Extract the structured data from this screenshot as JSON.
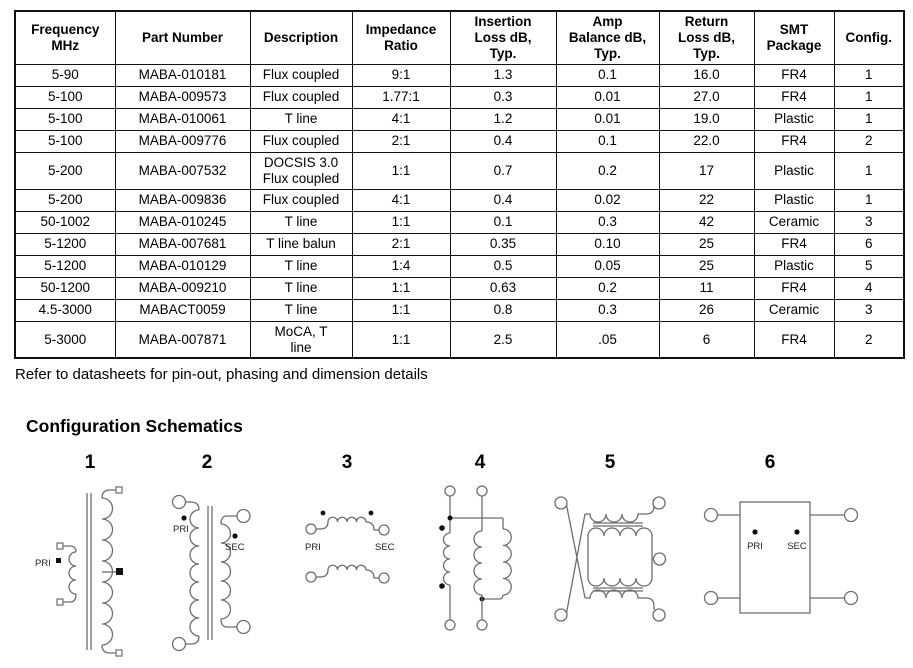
{
  "table": {
    "headers": [
      "Frequency\nMHz",
      "Part Number",
      "Description",
      "Impedance\nRatio",
      "Insertion\nLoss dB,\nTyp.",
      "Amp\nBalance dB,\nTyp.",
      "Return\nLoss dB,\nTyp.",
      "SMT\nPackage",
      "Config."
    ],
    "rows": [
      [
        "5-90",
        "MABA-010181",
        "Flux coupled",
        "9:1",
        "1.3",
        "0.1",
        "16.0",
        "FR4",
        "1"
      ],
      [
        "5-100",
        "MABA-009573",
        "Flux coupled",
        "1.77:1",
        "0.3",
        "0.01",
        "27.0",
        "FR4",
        "1"
      ],
      [
        "5-100",
        "MABA-010061",
        "T line",
        "4:1",
        "1.2",
        "0.01",
        "19.0",
        "Plastic",
        "1"
      ],
      [
        "5-100",
        "MABA-009776",
        "Flux coupled",
        "2:1",
        "0.4",
        "0.1",
        "22.0",
        "FR4",
        "2"
      ],
      [
        "5-200",
        "MABA-007532",
        "DOCSIS 3.0\nFlux coupled",
        "1:1",
        "0.7",
        "0.2",
        "17",
        "Plastic",
        "1"
      ],
      [
        "5-200",
        "MABA-009836",
        "Flux coupled",
        "4:1",
        "0.4",
        "0.02",
        "22",
        "Plastic",
        "1"
      ],
      [
        "50-1002",
        "MABA-010245",
        "T line",
        "1:1",
        "0.1",
        "0.3",
        "42",
        "Ceramic",
        "3"
      ],
      [
        "5-1200",
        "MABA-007681",
        "T line balun",
        "2:1",
        "0.35",
        "0.10",
        "25",
        "FR4",
        "6"
      ],
      [
        "5-1200",
        "MABA-010129",
        "T line",
        "1:4",
        "0.5",
        "0.05",
        "25",
        "Plastic",
        "5"
      ],
      [
        "50-1200",
        "MABA-009210",
        "T line",
        "1:1",
        "0.63",
        "0.2",
        "11",
        "FR4",
        "4"
      ],
      [
        "4.5-3000",
        "MABACT0059",
        "T line",
        "1:1",
        "0.8",
        "0.3",
        "26",
        "Ceramic",
        "3"
      ],
      [
        "5-3000",
        "MABA-007871",
        "MoCA, T\nline",
        "1:1",
        "2.5",
        ".05",
        "6",
        "FR4",
        "2"
      ]
    ]
  },
  "note": "Refer to datasheets for pin-out, phasing and dimension details",
  "section_title": "Configuration Schematics",
  "schematics": [
    {
      "number": "1",
      "pri": "PRI"
    },
    {
      "number": "2",
      "pri": "PRI",
      "sec": "SEC"
    },
    {
      "number": "3",
      "pri": "PRI",
      "sec": "SEC"
    },
    {
      "number": "4"
    },
    {
      "number": "5"
    },
    {
      "number": "6",
      "pri": "PRI",
      "sec": "SEC"
    }
  ],
  "colors": {
    "table_border": "#111111",
    "schematic_stroke": "#6e6e6e",
    "text": "#000000"
  }
}
